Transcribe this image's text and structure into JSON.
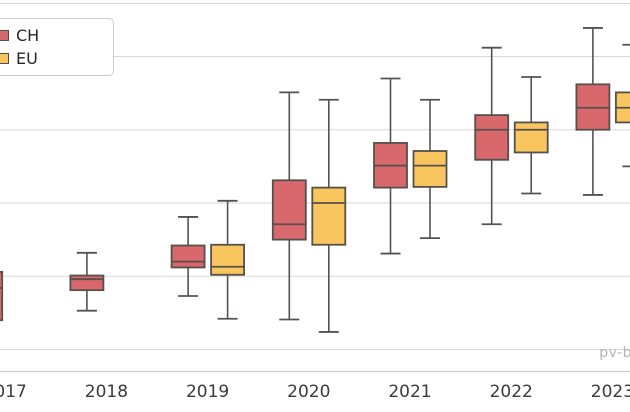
{
  "watermark": "pv-b",
  "legend": {
    "position": "top-left",
    "items": [
      "CH",
      "EU"
    ]
  },
  "chart_data": {
    "type": "boxplot",
    "title": "",
    "xlabel": "",
    "ylabel": "",
    "categories": [
      "2017",
      "2018",
      "2019",
      "2020",
      "2021",
      "2022",
      "2023"
    ],
    "y_axis": {
      "labels_visible": false,
      "note": "y tick labels cropped out of screenshot; values expressed in gridline units (0 = lowest visible gridline, spacing 1 per gridline)",
      "gridline_values": [
        0,
        1,
        2,
        3,
        4
      ],
      "grid": true
    },
    "legend_position": "top-left",
    "series": [
      {
        "name": "CH",
        "color": "#d8686c",
        "boxes": [
          {
            "whisker_low": null,
            "q1": 0.4,
            "median": 0.84,
            "q3": 1.06,
            "whisker_high": null
          },
          {
            "whisker_low": 0.53,
            "q1": 0.81,
            "median": 0.96,
            "q3": 1.01,
            "whisker_high": 1.32
          },
          {
            "whisker_low": 0.73,
            "q1": 1.12,
            "median": 1.2,
            "q3": 1.42,
            "whisker_high": 1.81
          },
          {
            "whisker_low": 0.41,
            "q1": 1.5,
            "median": 1.71,
            "q3": 2.31,
            "whisker_high": 3.51
          },
          {
            "whisker_low": 1.31,
            "q1": 2.21,
            "median": 2.51,
            "q3": 2.82,
            "whisker_high": 3.7
          },
          {
            "whisker_low": 1.71,
            "q1": 2.59,
            "median": 3.0,
            "q3": 3.2,
            "whisker_high": 4.12
          },
          {
            "whisker_low": 2.11,
            "q1": 3.0,
            "median": 3.3,
            "q3": 3.62,
            "whisker_high": 4.39
          }
        ]
      },
      {
        "name": "EU",
        "color": "#f9c55f",
        "boxes": [
          null,
          null,
          {
            "whisker_low": 0.42,
            "q1": 1.02,
            "median": 1.13,
            "q3": 1.43,
            "whisker_high": 2.03
          },
          {
            "whisker_low": 0.24,
            "q1": 1.43,
            "median": 2.0,
            "q3": 2.21,
            "whisker_high": 3.41
          },
          {
            "whisker_low": 1.52,
            "q1": 2.22,
            "median": 2.51,
            "q3": 2.71,
            "whisker_high": 3.41
          },
          {
            "whisker_low": 2.13,
            "q1": 2.69,
            "median": 3.0,
            "q3": 3.1,
            "whisker_high": 3.72
          },
          {
            "whisker_low": 2.5,
            "q1": 3.1,
            "median": 3.3,
            "q3": 3.51,
            "whisker_high": 4.16
          }
        ]
      }
    ],
    "style": {
      "box_edge_color": "#55504b",
      "whisker_color": "#575252",
      "gridline_color": "#dadada",
      "axis_line_color": "#cccccc",
      "tick_label_color": "#3b3b3b",
      "watermark_color": "#b5b5b5"
    }
  }
}
